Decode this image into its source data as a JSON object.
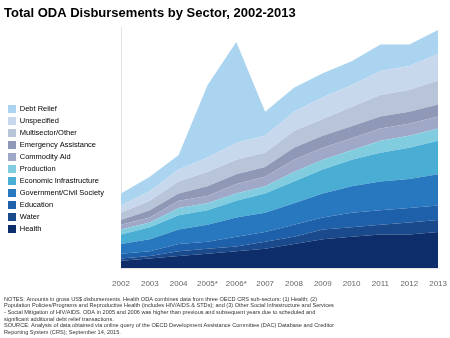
{
  "chart_data": {
    "type": "area",
    "title": "Total ODA Disbursements by Sector, 2002-2013",
    "x": [
      2002,
      2003,
      2004,
      2005,
      2006,
      2007,
      2008,
      2009,
      2010,
      2011,
      2012,
      2013
    ],
    "xlim": [
      2002,
      2013
    ],
    "xticks": [
      2002,
      2003,
      2004,
      {
        "value": 2005,
        "label": "2005*"
      },
      {
        "value": 2006,
        "label": "2006*"
      },
      2007,
      2008,
      2009,
      2010,
      2011,
      2012,
      2013
    ],
    "ylim": [
      0,
      100
    ],
    "stacked": true,
    "grid": false,
    "tick_labels": "x",
    "legend": "left",
    "series": [
      {
        "name": "Health",
        "color": "#0d2d6b",
        "values": [
          3,
          4,
          5,
          6,
          7,
          8,
          10,
          12,
          13,
          14,
          14,
          15
        ]
      },
      {
        "name": "Water",
        "color": "#1a4a8c",
        "values": [
          1,
          1,
          2,
          2,
          2,
          3,
          3,
          4,
          4,
          4,
          5,
          5
        ]
      },
      {
        "name": "Education",
        "color": "#1e60aa",
        "values": [
          2,
          2,
          3,
          3,
          4,
          4,
          5,
          5,
          6,
          6,
          6,
          6
        ]
      },
      {
        "name": "Government/Civil Society",
        "color": "#2878c0",
        "values": [
          4,
          5,
          6,
          7,
          8,
          8,
          9,
          10,
          11,
          12,
          12,
          13
        ]
      },
      {
        "name": "Economic Infrastructure",
        "color": "#4aaed4",
        "values": [
          4,
          5,
          6,
          6,
          7,
          8,
          9,
          10,
          11,
          12,
          13,
          14
        ]
      },
      {
        "name": "Production",
        "color": "#82cce0",
        "values": [
          2,
          2,
          3,
          3,
          3,
          3,
          4,
          4,
          4,
          5,
          5,
          5
        ]
      },
      {
        "name": "Commodity Aid",
        "color": "#a0a8c8",
        "values": [
          2,
          2,
          3,
          3,
          4,
          4,
          5,
          5,
          5,
          5,
          5,
          5
        ]
      },
      {
        "name": "Emergency Assistance",
        "color": "#9098b8",
        "values": [
          2,
          3,
          3,
          4,
          4,
          4,
          5,
          5,
          5,
          5,
          5,
          5
        ]
      },
      {
        "name": "Multisector/Other",
        "color": "#b8c4d8",
        "values": [
          3,
          4,
          5,
          6,
          6,
          6,
          7,
          7,
          8,
          9,
          9,
          10
        ]
      },
      {
        "name": "Unspecified",
        "color": "#c8d8ec",
        "values": [
          3,
          4,
          5,
          6,
          7,
          7,
          8,
          9,
          9,
          10,
          10,
          11
        ]
      },
      {
        "name": "Debt Relief",
        "color": "#aad4f0",
        "values": [
          5,
          6,
          6,
          30,
          42,
          10,
          10,
          10,
          10,
          11,
          9,
          10
        ]
      }
    ],
    "annotations": [
      "NOTES: Amounts in gross US$ disbursements. Health ODA combines data from three OECD CRS sub-sectors: (1) Health; (2)",
      "Population Policies/Programs and Reproductive Health (includes HIV/AIDS & STDs); and (3) Other Social Infrastructure and Services",
      "- Social Mitigation of HIV/AIDS. ODA in 2005 and 2006 was higher than previous and subsequent years due to scheduled and",
      "significant additional debt relief transactions.",
      "SOURCE: Analysis of data obtained via online query of the OECD Development Assistance Committee (DAC) Database and Creditor",
      "Reporting System (CRS); September 14, 2015."
    ]
  }
}
